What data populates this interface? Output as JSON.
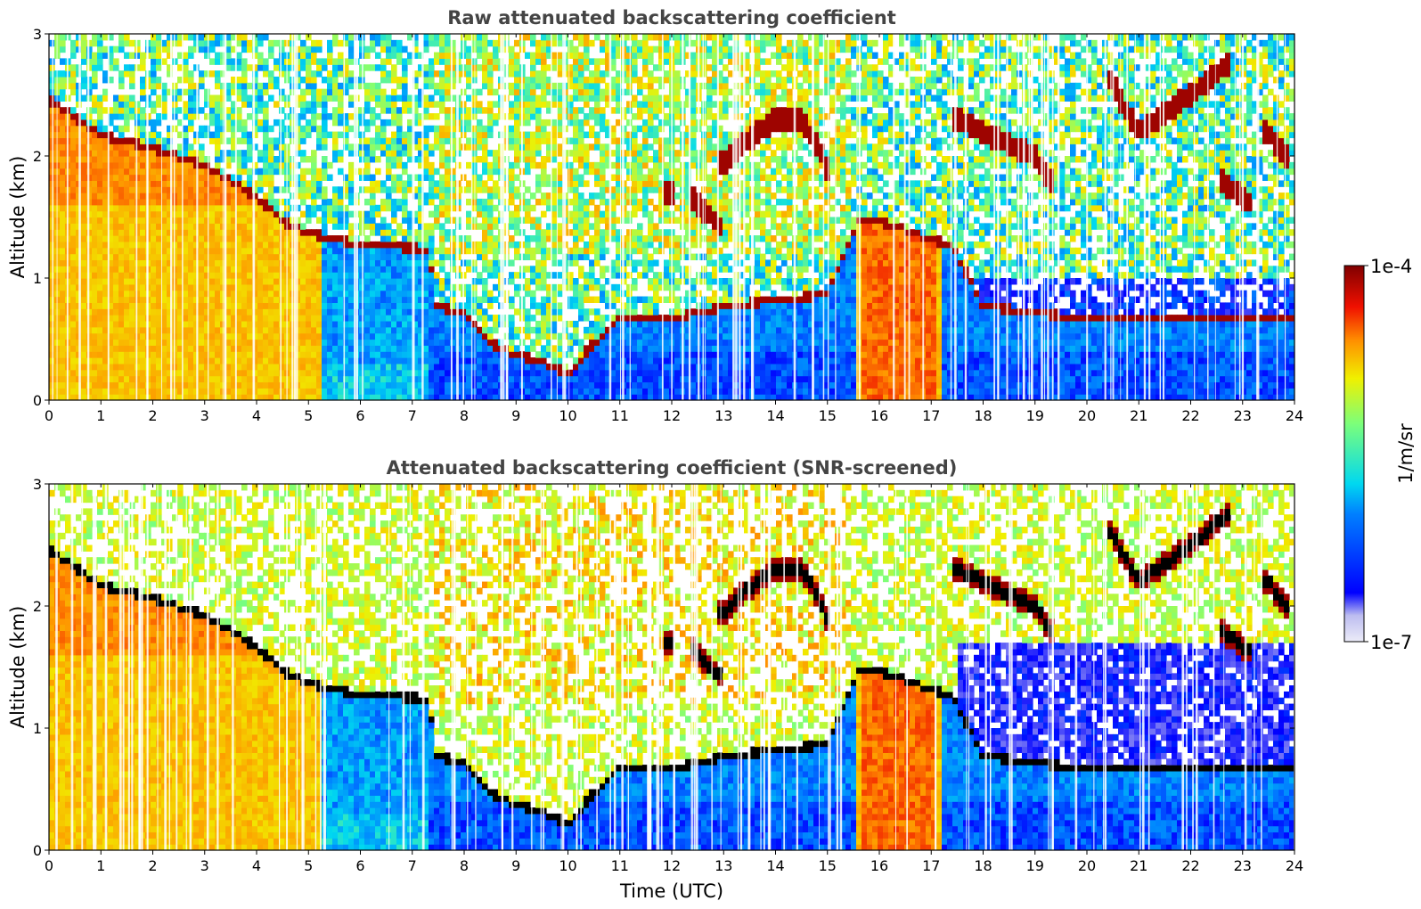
{
  "chart_data": [
    {
      "type": "heatmap",
      "title": "Raw attenuated backscattering coefficient",
      "xlabel": "",
      "ylabel": "Altitude (km)",
      "xlim": [
        0,
        24
      ],
      "ylim": [
        0,
        3
      ],
      "x_ticks": [
        "0",
        "1",
        "2",
        "3",
        "4",
        "5",
        "6",
        "7",
        "8",
        "9",
        "10",
        "11",
        "12",
        "13",
        "14",
        "15",
        "16",
        "17",
        "18",
        "19",
        "20",
        "21",
        "22",
        "23",
        "24"
      ],
      "y_ticks": [
        "0",
        "1",
        "2",
        "3"
      ],
      "screened": false,
      "layers": [
        {
          "feature": "elevated layer top",
          "points": [
            [
              0,
              2.5
            ],
            [
              1,
              2.2
            ],
            [
              2,
              2.1
            ],
            [
              3,
              1.95
            ],
            [
              4,
              1.7
            ],
            [
              4.5,
              1.5
            ],
            [
              5,
              1.4
            ],
            [
              5.5,
              1.35
            ],
            [
              6,
              1.3
            ],
            [
              7,
              1.25
            ],
            [
              7.3,
              1.25
            ]
          ]
        },
        {
          "feature": "descending layer",
          "points": [
            [
              7.4,
              0.8
            ],
            [
              8,
              0.75
            ],
            [
              8.5,
              0.5
            ],
            [
              9,
              0.4
            ],
            [
              9.5,
              0.35
            ],
            [
              10,
              0.25
            ]
          ]
        },
        {
          "feature": "cloud",
          "points": [
            [
              13,
              1.95
            ],
            [
              13.5,
              2.15
            ],
            [
              14,
              2.3
            ],
            [
              14.5,
              2.3
            ],
            [
              15,
              1.9
            ]
          ]
        },
        {
          "feature": "cloud",
          "points": [
            [
              17.5,
              2.3
            ],
            [
              18,
              2.2
            ],
            [
              18.5,
              2.1
            ],
            [
              19,
              2.0
            ],
            [
              19.3,
              1.8
            ]
          ]
        },
        {
          "feature": "cloud",
          "points": [
            [
              20.4,
              2.65
            ],
            [
              21,
              2.2
            ],
            [
              21.5,
              2.35
            ],
            [
              22,
              2.5
            ],
            [
              22.7,
              2.75
            ]
          ]
        }
      ]
    },
    {
      "type": "heatmap",
      "title": "Attenuated backscattering coefficient (SNR-screened)",
      "xlabel": "Time (UTC)",
      "ylabel": "Altitude (km)",
      "xlim": [
        0,
        24
      ],
      "ylim": [
        0,
        3
      ],
      "x_ticks": [
        "0",
        "1",
        "2",
        "3",
        "4",
        "5",
        "6",
        "7",
        "8",
        "9",
        "10",
        "11",
        "12",
        "13",
        "14",
        "15",
        "16",
        "17",
        "18",
        "19",
        "20",
        "21",
        "22",
        "23",
        "24"
      ],
      "y_ticks": [
        "0",
        "1",
        "2",
        "3"
      ],
      "screened": true
    }
  ],
  "colorbar": {
    "label": "1/m/sr",
    "min_label": "1e-7",
    "max_label": "1e-4",
    "min": 1e-07,
    "max": 0.0001,
    "scale": "log",
    "colormap": "jet",
    "colors": [
      "#ececf8",
      "#bcbcf0",
      "#0000ff",
      "#0080ff",
      "#00d8f0",
      "#7cff7a",
      "#f0f000",
      "#ff9000",
      "#f01000",
      "#800000"
    ]
  }
}
